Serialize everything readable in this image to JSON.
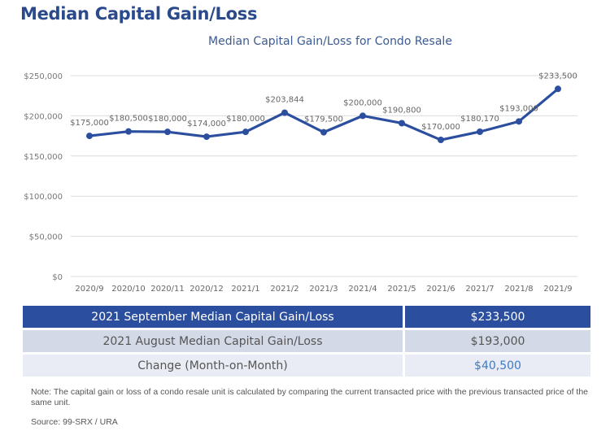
{
  "page": {
    "title": "Median Capital Gain/Loss"
  },
  "chart_data": {
    "type": "line",
    "title": "Median Capital Gain/Loss for Condo Resale",
    "xlabel": "",
    "ylabel": "",
    "ylim": [
      0,
      250000
    ],
    "yticks": [
      0,
      50000,
      100000,
      150000,
      200000,
      250000
    ],
    "ytick_labels": [
      "$0",
      "$50,000",
      "$100,000",
      "$150,000",
      "$200,000",
      "$250,000"
    ],
    "grid": true,
    "categories": [
      "2020/9",
      "2020/10",
      "2020/11",
      "2020/12",
      "2021/1",
      "2021/2",
      "2021/3",
      "2021/4",
      "2021/5",
      "2021/6",
      "2021/7",
      "2021/8",
      "2021/9"
    ],
    "series": [
      {
        "name": "Median Capital Gain/Loss",
        "values": [
          175000,
          180500,
          180000,
          174000,
          180000,
          203844,
          179500,
          200000,
          190800,
          170000,
          180170,
          193000,
          233500
        ],
        "labels": [
          "$175,000",
          "$180,500",
          "$180,000",
          "$174,000",
          "$180,000",
          "$203,844",
          "$179,500",
          "$200,000",
          "$190,800",
          "$170,000",
          "$180,170",
          "$193,000",
          "$233,500"
        ],
        "color": "#2b4f9e"
      }
    ]
  },
  "summary": {
    "rows": [
      {
        "label": "2021 September Median Capital Gain/Loss",
        "value": "$233,500"
      },
      {
        "label": "2021 August Median Capital Gain/Loss",
        "value": "$193,000"
      },
      {
        "label": "Change (Month-on-Month)",
        "value": "$40,500"
      }
    ]
  },
  "footer": {
    "note": "Note: The capital gain or loss of a condo resale unit is calculated by comparing the current transacted price with the previous transacted price of the same unit.",
    "source": "Source: 99-SRX / URA"
  },
  "colors": {
    "brand": "#2a4a8c",
    "line": "#2b4f9e",
    "header_row": "#2b4f9e",
    "row2": "#d3d9e6",
    "row3": "#e9ecf4",
    "change_value": "#3f7ac6",
    "grid": "#dcdcdc"
  }
}
